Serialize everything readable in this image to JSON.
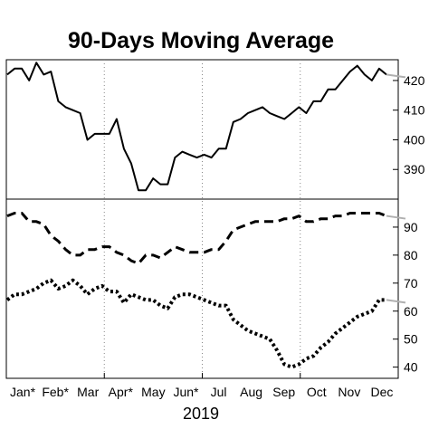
{
  "chart_data": {
    "type": "line",
    "title": "90-Days Moving Average",
    "xlabel": "2019",
    "x_ticks": [
      "Jan*",
      "Feb*",
      "Mar",
      "Apr*",
      "May",
      "Jun*",
      "Jul",
      "Aug",
      "Sep",
      "Oct",
      "Nov",
      "Dec"
    ],
    "panels": [
      {
        "yticks": [
          390,
          400,
          410,
          420
        ],
        "ylim": [
          380,
          427
        ],
        "series": [
          {
            "style": "solid",
            "values": [
              422,
              424,
              424,
              420,
              426,
              422,
              423,
              413,
              411,
              410,
              409,
              400,
              402,
              402,
              402,
              407,
              397,
              392,
              383,
              383,
              387,
              385,
              385,
              394,
              396,
              395,
              394,
              395,
              394,
              397,
              397,
              406,
              407,
              409,
              410,
              411,
              409,
              408,
              407,
              409,
              411,
              409,
              413,
              413,
              417,
              417,
              420,
              423,
              425,
              422,
              420,
              424,
              422
            ]
          }
        ]
      },
      {
        "yticks": [
          40,
          50,
          60,
          70,
          80,
          90
        ],
        "ylim": [
          36,
          100
        ],
        "series": [
          {
            "style": "dashed",
            "values": [
              94,
              95,
              95,
              92,
              92,
              91,
              87,
              85,
              82,
              80,
              80,
              82,
              82,
              83,
              83,
              81,
              80,
              78,
              77,
              80,
              80,
              79,
              81,
              83,
              82,
              81,
              81,
              81,
              82,
              82,
              85,
              89,
              90,
              91,
              92,
              92,
              92,
              92,
              93,
              93,
              94,
              92,
              92,
              93,
              93,
              94,
              94,
              95,
              95,
              95,
              95,
              95,
              94
            ]
          },
          {
            "style": "dotted",
            "values": [
              64,
              66,
              66,
              67,
              68,
              70,
              71,
              68,
              69,
              71,
              69,
              66,
              68,
              69,
              67,
              67,
              63,
              66,
              65,
              64,
              64,
              62,
              61,
              65,
              66,
              66,
              65,
              64,
              63,
              62,
              62,
              57,
              55,
              53,
              52,
              51,
              50,
              46,
              41,
              40,
              41,
              43,
              44,
              47,
              49,
              52,
              54,
              56,
              58,
              59,
              60,
              64,
              64
            ]
          }
        ]
      }
    ],
    "grid": "vertical dotted",
    "legend": "none"
  }
}
